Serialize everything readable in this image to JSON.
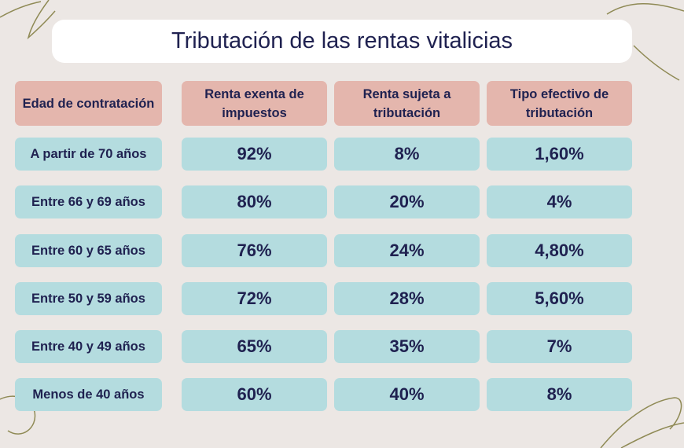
{
  "title": "Tributación de las rentas vitalicias",
  "headers": [
    "Edad de contratación",
    "Renta exenta de impuestos",
    "Renta sujeta a tributación",
    "Tipo efectivo de tributación"
  ],
  "rows": [
    {
      "age": "A partir de 70 años",
      "exempt": "92%",
      "taxable": "8%",
      "effective": "1,60%"
    },
    {
      "age": "Entre 66 y 69 años",
      "exempt": "80%",
      "taxable": "20%",
      "effective": "4%"
    },
    {
      "age": "Entre 60 y 65 años",
      "exempt": "76%",
      "taxable": "24%",
      "effective": "4,80%"
    },
    {
      "age": "Entre 50 y 59 años",
      "exempt": "72%",
      "taxable": "28%",
      "effective": "5,60%"
    },
    {
      "age": "Entre 40 y 49 años",
      "exempt": "65%",
      "taxable": "35%",
      "effective": "7%"
    },
    {
      "age": "Menos de 40 años",
      "exempt": "60%",
      "taxable": "40%",
      "effective": "8%"
    }
  ],
  "colors": {
    "background": "#ece7e4",
    "header_fill": "#e4b6ad",
    "cell_fill": "#b4dcdf",
    "text": "#1f2150",
    "decoration": "#8f8a55"
  }
}
